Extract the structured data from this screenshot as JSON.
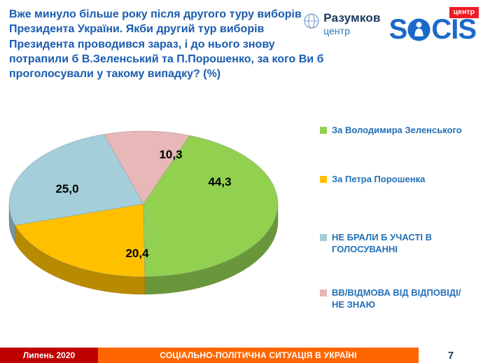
{
  "header": {
    "question": "Вже минуло більше року після другого туру виборів Президента України. Якби другий тур виборів Президента проводився зараз, і до нього знову потрапили б В.Зеленський та П.Порошенко, за кого Ви б проголосували у такому випадку? (%)",
    "logos": {
      "razumkov": {
        "line1": "Разумков",
        "line2": "центр"
      },
      "socis": {
        "part1": "S",
        "part2": "CIS",
        "badge": "центр"
      }
    }
  },
  "chart_data": {
    "type": "pie",
    "style": "3d",
    "title": "Вже минуло більше року після другого туру виборів Президента України. Якби другий тур виборів Президента проводився зараз, і до нього знову потрапили б В.Зеленський та П.Порошенко, за кого Ви б проголосували у такому випадку? (%)",
    "labels": [
      "За Володимира Зеленського",
      "За Петра Порошенка",
      "НЕ БРАЛИ Б УЧАСТІ В ГОЛОСУВАННІ",
      "ВВ/ВІДМОВА ВІД ВІДПОВІДІ/ НЕ ЗНАЮ"
    ],
    "values": [
      44.3,
      20.4,
      25.0,
      10.3
    ],
    "display_values": [
      "44,3",
      "20,4",
      "25,0",
      "10,3"
    ],
    "colors": [
      "#92D050",
      "#FFC000",
      "#A3CEDA",
      "#E8B7B7"
    ],
    "legend_position": "right"
  },
  "brand_colors": {
    "title_blue": "#1A5CB0",
    "legend_blue": "#2470B8",
    "socis_blue": "#1B6AC9",
    "badge_red": "#EE1C25",
    "footer_red": "#C00000",
    "footer_orange": "#FF6600",
    "page_navy": "#17375E"
  },
  "footer": {
    "date": "Липень 2020",
    "title": "СОЦІАЛЬНО-ПОЛІТИЧНА СИТУАЦІЯ В УКРАЇНІ",
    "page": "7"
  }
}
